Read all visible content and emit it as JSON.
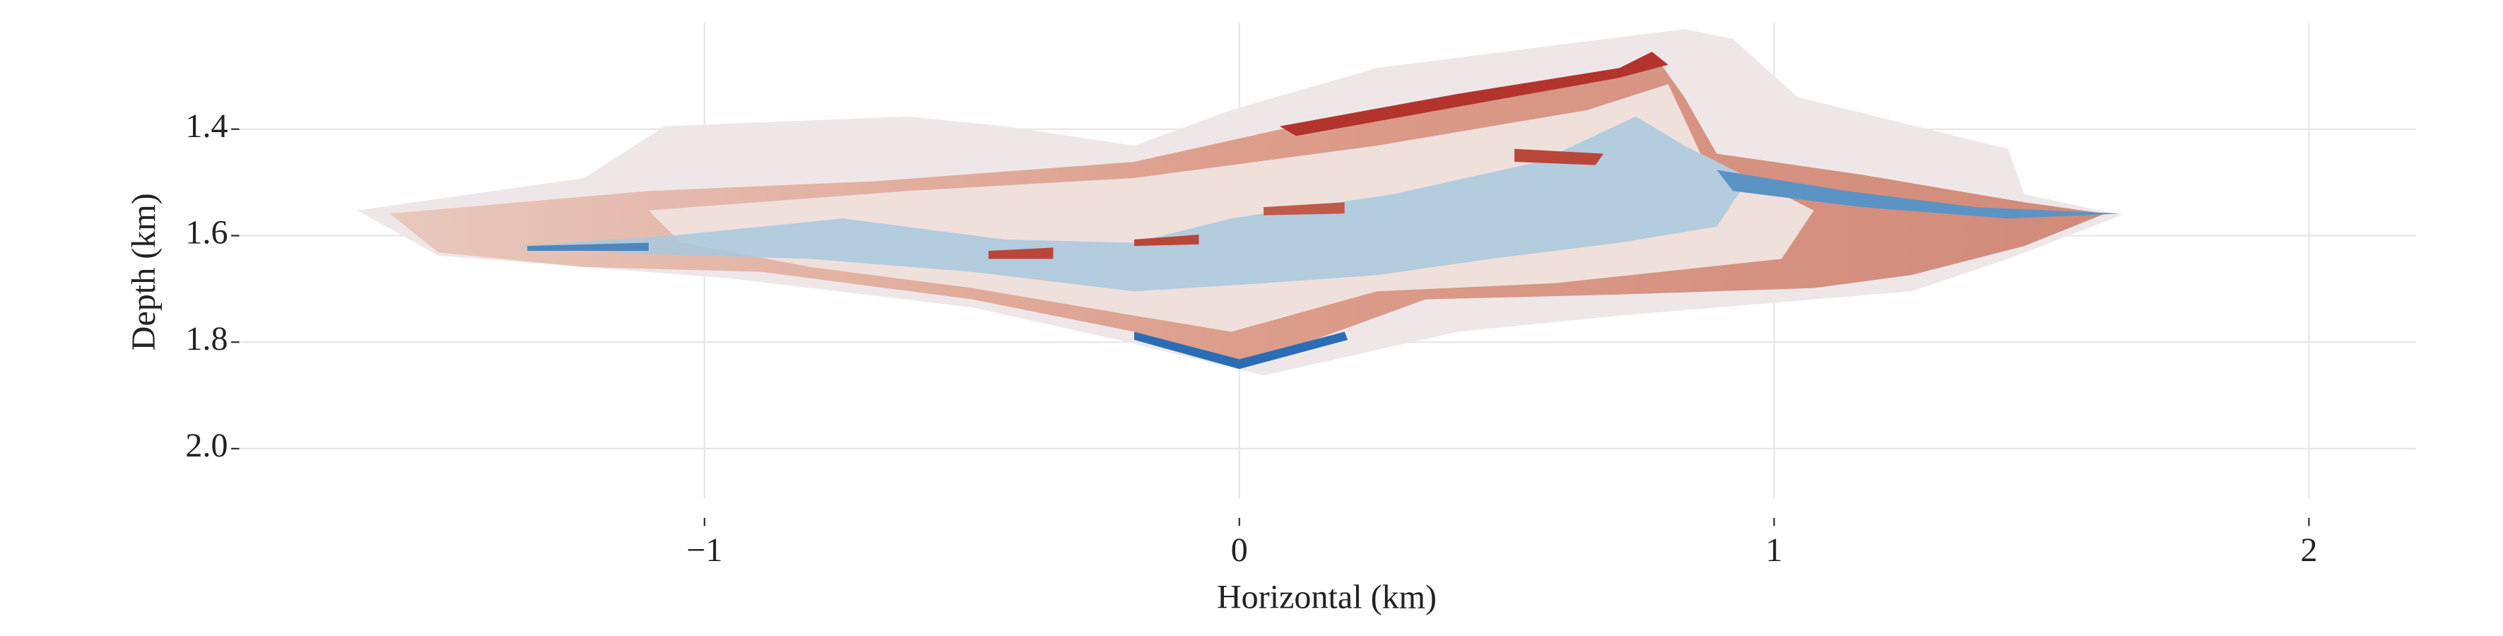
{
  "chart_data": {
    "type": "image",
    "xlabel": "Horizontal (km)",
    "ylabel": "Depth (km)",
    "xlim": [
      -1.87,
      2.2
    ],
    "ylim": [
      2.13,
      1.2
    ],
    "y_inverted": true,
    "grid": true,
    "xticks": [
      {
        "value": -1,
        "label": "−1"
      },
      0,
      1,
      2
    ],
    "yticks": [
      1.4,
      1.6,
      1.8,
      {
        "value": 2,
        "label": "2.0"
      }
    ],
    "colormap": "RdBu"
  }
}
